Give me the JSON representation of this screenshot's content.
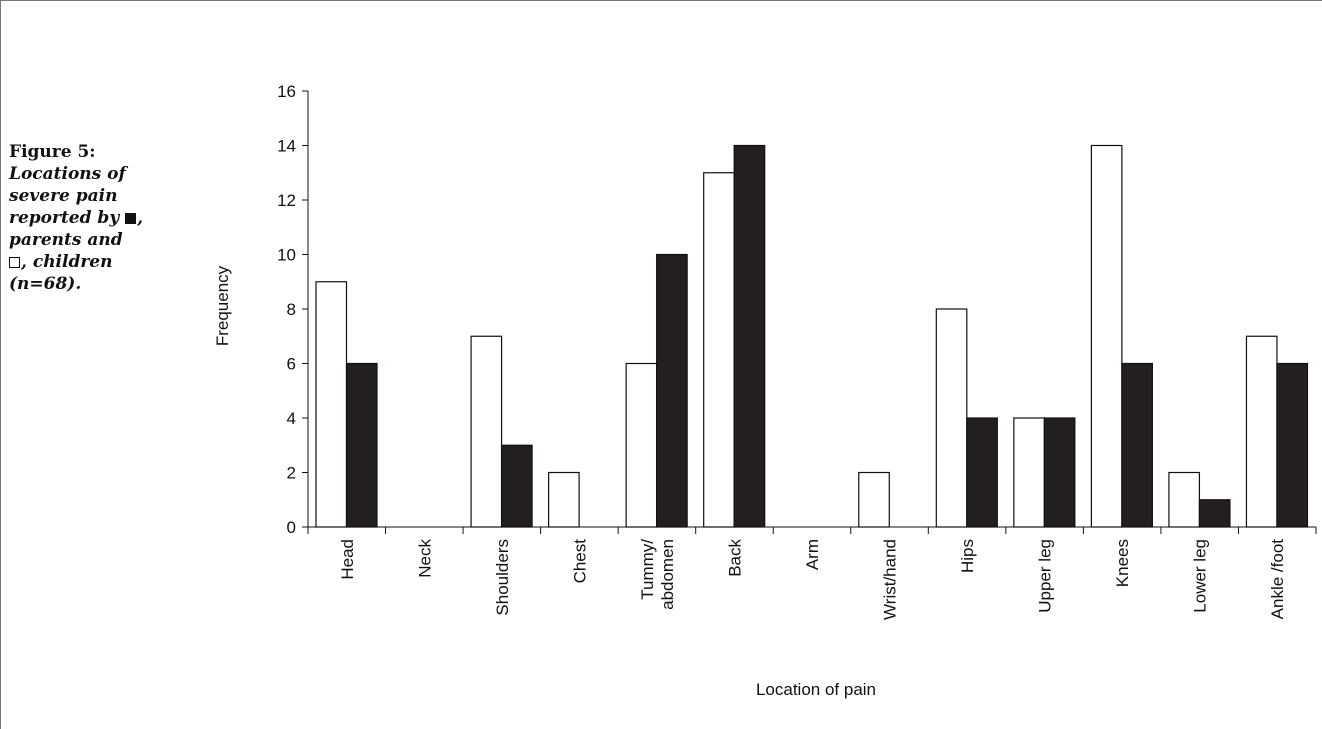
{
  "caption": {
    "label": "Figure 5:",
    "line1": "Locations of",
    "line2": "severe pain",
    "line3_pre": "reported by",
    "line3_post": ",",
    "line4": "parents and",
    "line5_post": ", children",
    "line6": "(n=68)."
  },
  "colors": {
    "children": "#ffffff",
    "parents": "#231f20",
    "stroke": "#111111"
  },
  "chart_data": {
    "type": "bar",
    "xlabel": "Location of pain",
    "ylabel": "Frequency",
    "ylim": [
      0,
      16
    ],
    "yticks": [
      0,
      2,
      4,
      6,
      8,
      10,
      12,
      14,
      16
    ],
    "categories": [
      "Head",
      "Neck",
      "Shoulders",
      "Chest",
      "Tummy/\nabdomen",
      "Back",
      "Arm",
      "Wrist/hand",
      "Hips",
      "Upper leg",
      "Knees",
      "Lower leg",
      "Ankle /foot"
    ],
    "series": [
      {
        "name": "children",
        "values": [
          9,
          0,
          7,
          2,
          6,
          13,
          0,
          2,
          8,
          4,
          14,
          2,
          7
        ]
      },
      {
        "name": "parents",
        "values": [
          6,
          0,
          3,
          0,
          10,
          14,
          0,
          0,
          4,
          4,
          6,
          1,
          6
        ]
      }
    ]
  }
}
